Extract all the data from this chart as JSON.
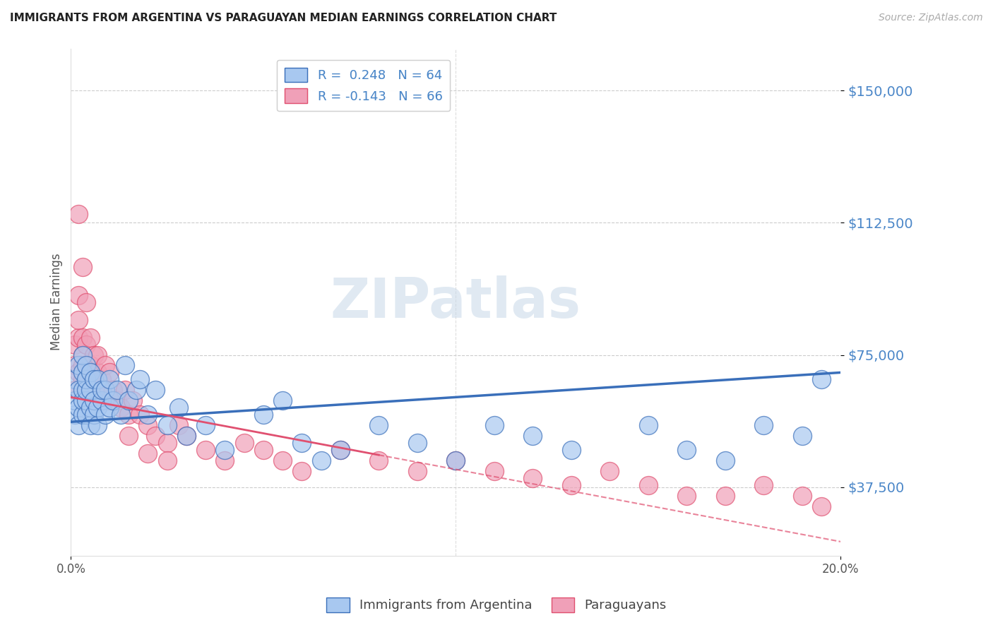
{
  "title": "IMMIGRANTS FROM ARGENTINA VS PARAGUAYAN MEDIAN EARNINGS CORRELATION CHART",
  "source": "Source: ZipAtlas.com",
  "ylabel": "Median Earnings",
  "y_ticks": [
    37500,
    75000,
    112500,
    150000
  ],
  "y_tick_labels": [
    "$37,500",
    "$75,000",
    "$112,500",
    "$150,000"
  ],
  "xlim": [
    0.0,
    0.2
  ],
  "ylim": [
    18000,
    162000
  ],
  "watermark": "ZIPatlas",
  "blue_color": "#3a6fba",
  "pink_color": "#e05070",
  "blue_scatter_color": "#a8c8f0",
  "pink_scatter_color": "#f0a0b8",
  "title_color": "#222222",
  "axis_label_color": "#4a86c8",
  "source_color": "#aaaaaa",
  "argentina_x": [
    0.001,
    0.001,
    0.001,
    0.002,
    0.002,
    0.002,
    0.002,
    0.003,
    0.003,
    0.003,
    0.003,
    0.003,
    0.004,
    0.004,
    0.004,
    0.004,
    0.004,
    0.005,
    0.005,
    0.005,
    0.005,
    0.006,
    0.006,
    0.006,
    0.007,
    0.007,
    0.007,
    0.008,
    0.008,
    0.009,
    0.009,
    0.01,
    0.01,
    0.011,
    0.012,
    0.013,
    0.014,
    0.015,
    0.017,
    0.018,
    0.02,
    0.022,
    0.025,
    0.028,
    0.03,
    0.035,
    0.04,
    0.05,
    0.055,
    0.06,
    0.065,
    0.07,
    0.08,
    0.09,
    0.1,
    0.11,
    0.12,
    0.13,
    0.15,
    0.16,
    0.17,
    0.18,
    0.19,
    0.195
  ],
  "argentina_y": [
    58000,
    62000,
    68000,
    55000,
    60000,
    65000,
    72000,
    58000,
    62000,
    65000,
    70000,
    75000,
    58000,
    62000,
    65000,
    68000,
    72000,
    55000,
    60000,
    65000,
    70000,
    58000,
    62000,
    68000,
    55000,
    60000,
    68000,
    62000,
    65000,
    58000,
    65000,
    60000,
    68000,
    62000,
    65000,
    58000,
    72000,
    62000,
    65000,
    68000,
    58000,
    65000,
    55000,
    60000,
    52000,
    55000,
    48000,
    58000,
    62000,
    50000,
    45000,
    48000,
    55000,
    50000,
    45000,
    55000,
    52000,
    48000,
    55000,
    48000,
    45000,
    55000,
    52000,
    68000
  ],
  "paraguayan_x": [
    0.001,
    0.001,
    0.001,
    0.002,
    0.002,
    0.002,
    0.002,
    0.003,
    0.003,
    0.003,
    0.003,
    0.004,
    0.004,
    0.004,
    0.005,
    0.005,
    0.005,
    0.006,
    0.006,
    0.007,
    0.007,
    0.007,
    0.008,
    0.008,
    0.009,
    0.009,
    0.01,
    0.01,
    0.011,
    0.012,
    0.013,
    0.014,
    0.015,
    0.016,
    0.018,
    0.02,
    0.022,
    0.025,
    0.028,
    0.03,
    0.035,
    0.04,
    0.045,
    0.05,
    0.055,
    0.06,
    0.07,
    0.08,
    0.09,
    0.1,
    0.11,
    0.12,
    0.13,
    0.14,
    0.15,
    0.16,
    0.17,
    0.18,
    0.19,
    0.195,
    0.002,
    0.003,
    0.004,
    0.015,
    0.02,
    0.025
  ],
  "paraguayan_y": [
    65000,
    72000,
    78000,
    70000,
    80000,
    85000,
    92000,
    68000,
    72000,
    75000,
    80000,
    65000,
    70000,
    78000,
    65000,
    72000,
    80000,
    68000,
    75000,
    65000,
    70000,
    75000,
    62000,
    68000,
    65000,
    72000,
    62000,
    70000,
    65000,
    62000,
    60000,
    65000,
    58000,
    62000,
    58000,
    55000,
    52000,
    50000,
    55000,
    52000,
    48000,
    45000,
    50000,
    48000,
    45000,
    42000,
    48000,
    45000,
    42000,
    45000,
    42000,
    40000,
    38000,
    42000,
    38000,
    35000,
    35000,
    38000,
    35000,
    32000,
    115000,
    100000,
    90000,
    52000,
    47000,
    45000
  ]
}
